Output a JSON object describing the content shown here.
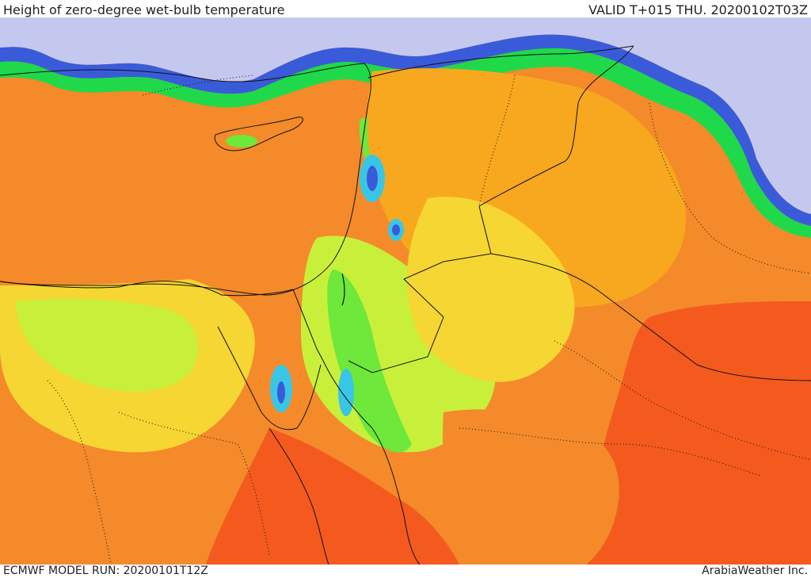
{
  "header": {
    "title": "Height of zero-degree wet-bulb temperature",
    "valid": "VALID T+015 THU. 20200102T03Z"
  },
  "footer": {
    "model_run": "ECMWF MODEL RUN: 20200101T12Z",
    "credit": "ArabiaWeather Inc."
  },
  "map": {
    "palette": {
      "very_low": "#c5c8ee",
      "low_blue": "#3a5bd9",
      "cyan": "#39c6e6",
      "green_dark": "#1fd94a",
      "green": "#6ee83a",
      "yellow_green": "#c8f03a",
      "yellow": "#f5d632",
      "orange": "#f7a81e",
      "orange_dark": "#f48a2a",
      "red_orange": "#f45a1e",
      "border_color": "#111111"
    }
  }
}
